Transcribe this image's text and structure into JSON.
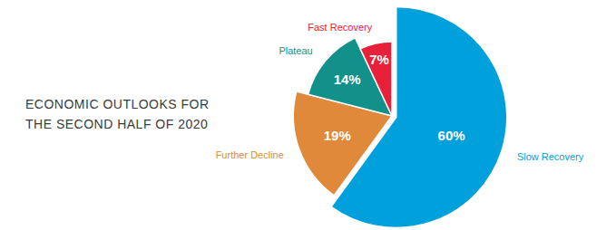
{
  "chart_data": {
    "type": "pie",
    "title": "ECONOMIC OUTLOOKS FOR THE SECOND HALF OF 2020",
    "categories": [
      "Slow Recovery",
      "Further Decline",
      "Plateau",
      "Fast Recovery"
    ],
    "values": [
      60,
      19,
      14,
      7
    ],
    "value_labels": [
      "60%",
      "19%",
      "14%",
      "7%"
    ],
    "colors": [
      "#00a0dc",
      "#e0893a",
      "#12918a",
      "#e8213a"
    ],
    "data_labels": true
  }
}
